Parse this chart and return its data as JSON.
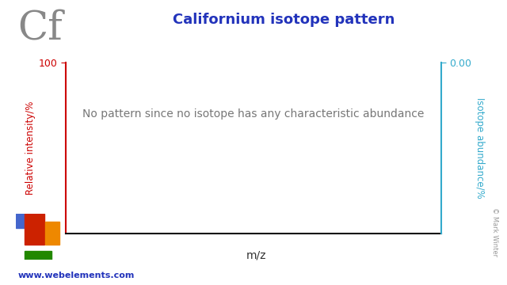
{
  "title": "Californium isotope pattern",
  "element_symbol": "Cf",
  "left_ylabel": "Relative intensity/%",
  "right_ylabel": "Isotope abundance/%",
  "xlabel": "m/z",
  "no_pattern_text": "No pattern since no isotope has any characteristic abundance",
  "left_ytick_top": "100",
  "right_ytick_top": "0.00",
  "title_color": "#2233bb",
  "left_axis_color": "#cc0000",
  "right_axis_color": "#33aacc",
  "bottom_axis_color": "#111111",
  "element_color": "#888888",
  "no_pattern_text_color": "#777777",
  "website_text": "www.webelements.com",
  "copyright_text": "© Mark Winter",
  "bg_color": "#ffffff",
  "periodic_table_colors": {
    "blue_bar": "#4466cc",
    "red_bar": "#cc2200",
    "orange_bar": "#ee8800",
    "green_bar": "#228800"
  }
}
